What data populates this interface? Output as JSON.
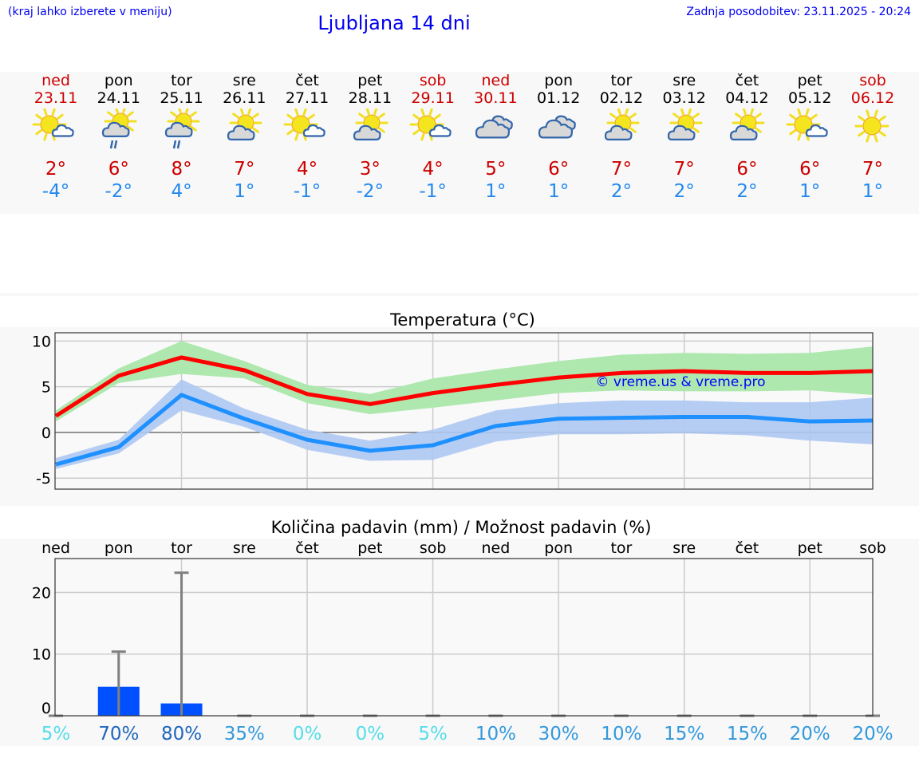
{
  "header": {
    "hint": "(kraj lahko izberete v meniju)",
    "title": "Ljubljana 14 dni",
    "updated": "Zadnja posodobitev: 23.11.2025 - 20:24"
  },
  "colors": {
    "weekend": "#cc0000",
    "weekday": "#000000",
    "max": "#cc0000",
    "min": "#2288ee",
    "link": "#0000ee"
  },
  "days": [
    {
      "name": "ned",
      "date": "23.11",
      "weekend": true,
      "icon": "sun-small-cloud",
      "max": "2°",
      "min": "-4°"
    },
    {
      "name": "pon",
      "date": "24.11",
      "weekend": false,
      "icon": "sun-cloud-rain",
      "max": "6°",
      "min": "-2°"
    },
    {
      "name": "tor",
      "date": "25.11",
      "weekend": false,
      "icon": "sun-cloud-rain",
      "max": "8°",
      "min": "4°"
    },
    {
      "name": "sre",
      "date": "26.11",
      "weekend": false,
      "icon": "sun-cloud",
      "max": "7°",
      "min": "1°"
    },
    {
      "name": "čet",
      "date": "27.11",
      "weekend": false,
      "icon": "sun-small-cloud",
      "max": "4°",
      "min": "-1°"
    },
    {
      "name": "pet",
      "date": "28.11",
      "weekend": false,
      "icon": "sun-cloud",
      "max": "3°",
      "min": "-2°"
    },
    {
      "name": "sob",
      "date": "29.11",
      "weekend": true,
      "icon": "sun-small-cloud",
      "max": "4°",
      "min": "-1°"
    },
    {
      "name": "ned",
      "date": "30.11",
      "weekend": true,
      "icon": "cloudy",
      "max": "5°",
      "min": "1°"
    },
    {
      "name": "pon",
      "date": "01.12",
      "weekend": false,
      "icon": "cloudy",
      "max": "6°",
      "min": "1°"
    },
    {
      "name": "tor",
      "date": "02.12",
      "weekend": false,
      "icon": "sun-cloud",
      "max": "7°",
      "min": "2°"
    },
    {
      "name": "sre",
      "date": "03.12",
      "weekend": false,
      "icon": "sun-cloud",
      "max": "7°",
      "min": "2°"
    },
    {
      "name": "čet",
      "date": "04.12",
      "weekend": false,
      "icon": "sun-cloud",
      "max": "6°",
      "min": "2°"
    },
    {
      "name": "pet",
      "date": "05.12",
      "weekend": false,
      "icon": "sun-small-cloud",
      "max": "6°",
      "min": "1°"
    },
    {
      "name": "sob",
      "date": "06.12",
      "weekend": true,
      "icon": "sun",
      "max": "7°",
      "min": "1°"
    }
  ],
  "chart_data": [
    {
      "type": "line",
      "title": "Temperatura (°C)",
      "watermark": "© vreme.us & vreme.pro",
      "ylim": [
        -6.2,
        10.9
      ],
      "yticks": [
        10,
        5,
        0,
        -5
      ],
      "grid": true,
      "series": [
        {
          "key": "max",
          "color": "#ff0000",
          "band_color": "#aee8ae",
          "values": [
            1.8,
            6.2,
            8.2,
            6.8,
            4.2,
            3.1,
            4.3,
            5.2,
            6.0,
            6.5,
            6.7,
            6.5,
            6.5,
            6.7
          ],
          "band_low": [
            1.2,
            5.4,
            6.4,
            5.9,
            3.2,
            2.0,
            2.7,
            3.5,
            4.3,
            4.6,
            4.5,
            4.5,
            4.6,
            4.1
          ],
          "band_high": [
            2.4,
            7.0,
            10.0,
            7.8,
            5.2,
            4.2,
            5.9,
            6.9,
            7.8,
            8.5,
            8.7,
            8.6,
            8.7,
            9.4
          ]
        },
        {
          "key": "min",
          "color": "#1e90ff",
          "band_color": "#aec8f2",
          "values": [
            -3.5,
            -1.6,
            4.1,
            1.5,
            -0.8,
            -2.0,
            -1.4,
            0.7,
            1.5,
            1.6,
            1.7,
            1.7,
            1.2,
            1.3
          ],
          "band_low": [
            -4.0,
            -2.3,
            2.4,
            0.6,
            -1.9,
            -3.1,
            -3.0,
            -1.0,
            -0.2,
            -0.2,
            -0.1,
            -0.3,
            -0.9,
            -1.3
          ],
          "band_high": [
            -2.8,
            -0.8,
            5.8,
            2.6,
            0.3,
            -0.9,
            0.3,
            2.4,
            3.2,
            3.5,
            3.5,
            3.3,
            3.3,
            3.8
          ]
        }
      ]
    },
    {
      "type": "bar",
      "title": "Količina padavin (mm) / Možnost padavin (%)",
      "categories": [
        "ned",
        "pon",
        "tor",
        "sre",
        "čet",
        "pet",
        "sob",
        "ned",
        "pon",
        "tor",
        "sre",
        "čet",
        "pet",
        "sob"
      ],
      "ylim": [
        0,
        25.5
      ],
      "yticks": [
        20,
        10,
        0
      ],
      "grid": true,
      "bar_color": "#0050ff",
      "errorbar_color": "#808080",
      "values": [
        0,
        4.7,
        2.0,
        0,
        0,
        0,
        0,
        0,
        0,
        0,
        0,
        0,
        0,
        0
      ],
      "error_high": [
        0,
        10.4,
        23.2,
        0,
        0,
        0,
        0,
        0,
        0,
        0,
        0,
        0,
        0,
        0
      ],
      "probability": [
        "5%",
        "70%",
        "80%",
        "35%",
        "0%",
        "0%",
        "5%",
        "10%",
        "30%",
        "10%",
        "15%",
        "15%",
        "20%",
        "20%"
      ],
      "probability_colors": [
        "#55dde8",
        "#1f66bb",
        "#1f66bb",
        "#3399dd",
        "#55dde8",
        "#55dde8",
        "#55dde8",
        "#3399dd",
        "#3399dd",
        "#3399dd",
        "#3399dd",
        "#3399dd",
        "#3399dd",
        "#3399dd"
      ]
    }
  ]
}
